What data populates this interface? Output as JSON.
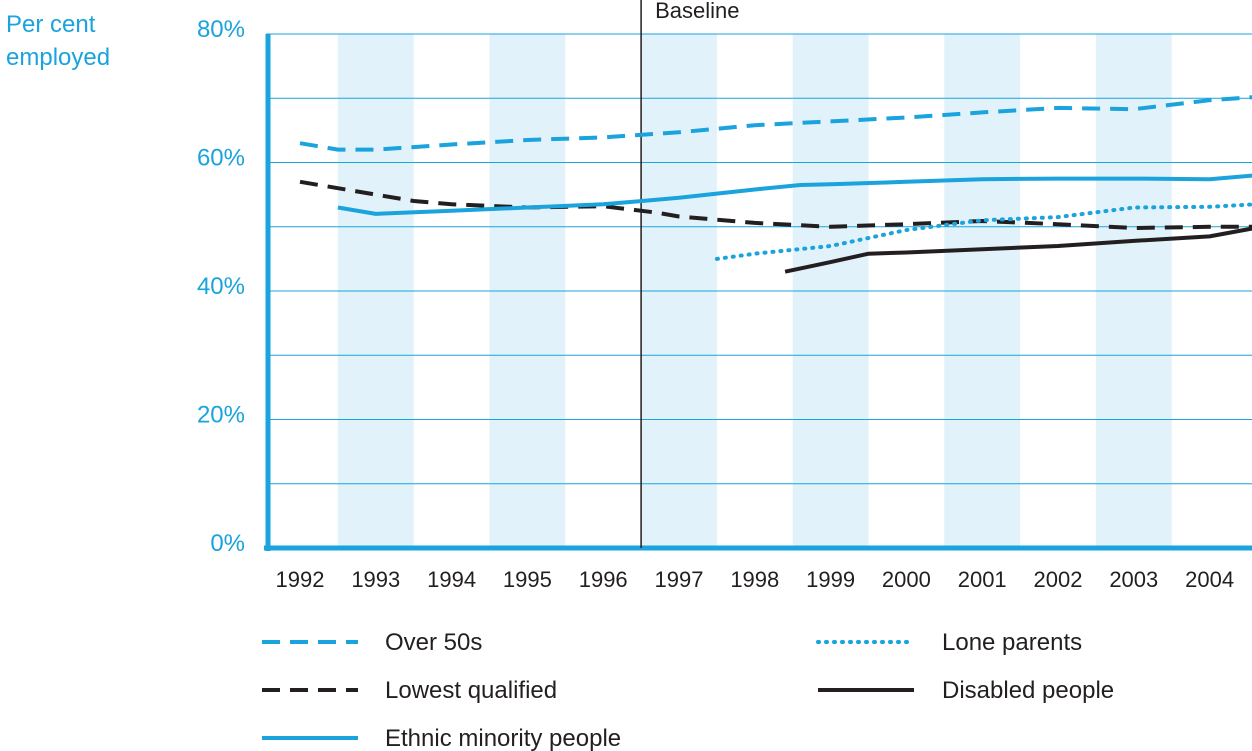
{
  "chart_data": {
    "type": "line",
    "ylabel_lines": [
      "Per cent",
      "employed"
    ],
    "yticks": [
      "0%",
      "20%",
      "40%",
      "60%",
      "80%"
    ],
    "ylim": [
      0,
      80
    ],
    "x": [
      "1992",
      "1993",
      "1994",
      "1995",
      "1996",
      "1997",
      "1998",
      "1999",
      "2000",
      "2001",
      "2002",
      "2003",
      "2004"
    ],
    "annotation": "Baseline",
    "grid": true,
    "series": [
      {
        "name": "Over 50s",
        "style": "dashed",
        "color": "#1aa3dc",
        "points": [
          [
            1992.0,
            63.0
          ],
          [
            1992.5,
            62.0
          ],
          [
            1993.0,
            62.0
          ],
          [
            1994.0,
            62.8
          ],
          [
            1995.0,
            63.5
          ],
          [
            1996.0,
            63.9
          ],
          [
            1997.0,
            64.7
          ],
          [
            1998.0,
            65.8
          ],
          [
            1999.0,
            66.4
          ],
          [
            2000.0,
            67.0
          ],
          [
            2001.0,
            67.8
          ],
          [
            2002.0,
            68.5
          ],
          [
            2003.0,
            68.3
          ],
          [
            2004.0,
            69.7
          ],
          [
            2004.6,
            70.2
          ]
        ]
      },
      {
        "name": "Lowest qualified",
        "style": "dashed",
        "color": "#231f20",
        "points": [
          [
            1992.0,
            57.0
          ],
          [
            1993.0,
            55.0
          ],
          [
            1993.5,
            54.0
          ],
          [
            1994.0,
            53.5
          ],
          [
            1995.0,
            53.0
          ],
          [
            1996.0,
            53.2
          ],
          [
            1996.7,
            52.2
          ],
          [
            1997.0,
            51.6
          ],
          [
            1998.0,
            50.6
          ],
          [
            1999.0,
            50.0
          ],
          [
            2000.0,
            50.4
          ],
          [
            2001.0,
            50.9
          ],
          [
            2002.0,
            50.4
          ],
          [
            2003.0,
            49.8
          ],
          [
            2004.0,
            50.0
          ],
          [
            2004.6,
            50.0
          ]
        ]
      },
      {
        "name": "Ethnic minority people",
        "style": "solid",
        "color": "#1aa3dc",
        "points": [
          [
            1992.5,
            53.0
          ],
          [
            1993.0,
            52.0
          ],
          [
            1994.0,
            52.5
          ],
          [
            1995.0,
            53.0
          ],
          [
            1996.0,
            53.5
          ],
          [
            1997.0,
            54.5
          ],
          [
            1998.0,
            55.8
          ],
          [
            1998.6,
            56.5
          ],
          [
            1999.0,
            56.6
          ],
          [
            2000.0,
            57.0
          ],
          [
            2001.0,
            57.4
          ],
          [
            2002.0,
            57.5
          ],
          [
            2003.0,
            57.5
          ],
          [
            2004.0,
            57.4
          ],
          [
            2004.6,
            58.0
          ]
        ]
      },
      {
        "name": "Lone parents",
        "style": "dotted",
        "color": "#1aa3dc",
        "points": [
          [
            1997.5,
            45.0
          ],
          [
            1998.0,
            45.8
          ],
          [
            1999.0,
            47.0
          ],
          [
            2000.0,
            49.5
          ],
          [
            2001.0,
            51.0
          ],
          [
            2002.0,
            51.5
          ],
          [
            2003.0,
            53.0
          ],
          [
            2004.0,
            53.1
          ],
          [
            2004.6,
            53.5
          ]
        ]
      },
      {
        "name": "Disabled people",
        "style": "solid",
        "color": "#231f20",
        "points": [
          [
            1998.4,
            43.0
          ],
          [
            1999.0,
            44.5
          ],
          [
            1999.5,
            45.8
          ],
          [
            2000.0,
            46.0
          ],
          [
            2001.0,
            46.5
          ],
          [
            2002.0,
            47.0
          ],
          [
            2003.0,
            47.8
          ],
          [
            2004.0,
            48.5
          ],
          [
            2004.6,
            49.8
          ]
        ]
      }
    ],
    "legend": [
      {
        "label": "Over 50s",
        "style": "dashed",
        "color": "#1aa3dc"
      },
      {
        "label": "Lowest qualified",
        "style": "dashed",
        "color": "#231f20"
      },
      {
        "label": "Ethnic minority people",
        "style": "solid",
        "color": "#1aa3dc"
      },
      {
        "label": "Lone parents",
        "style": "dotted",
        "color": "#1aa3dc"
      },
      {
        "label": "Disabled people",
        "style": "solid",
        "color": "#231f20"
      }
    ]
  }
}
